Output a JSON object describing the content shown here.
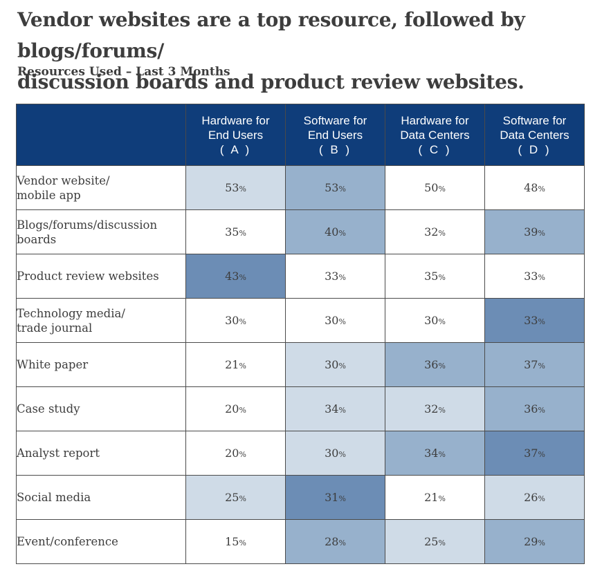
{
  "headline_line1": "Vendor websites are a top resource, followed by blogs/forums/",
  "headline_line2": "discussion boards and product review websites.",
  "subtitle": "Resources Used – Last 3 Months",
  "colors": {
    "header_bg": "#0f3d7a",
    "level_0": "#ffffff",
    "level_1": "#cfdbe7",
    "level_2": "#97b1cc",
    "level_3": "#6c8db5"
  },
  "chart_data": {
    "type": "table",
    "title": "Resources Used – Last 3 Months",
    "columns": [
      {
        "line1": "Hardware for",
        "line2": "End Users",
        "letter": "( A )"
      },
      {
        "line1": "Software for",
        "line2": "End Users",
        "letter": "( B )"
      },
      {
        "line1": "Hardware for",
        "line2": "Data Centers",
        "letter": "( C )"
      },
      {
        "line1": "Software for",
        "line2": "Data Centers",
        "letter": "( D )"
      }
    ],
    "unit": "%",
    "rows": [
      {
        "label_lines": [
          "Vendor website/",
          "mobile app"
        ],
        "values": [
          53,
          53,
          50,
          48
        ],
        "shade": [
          1,
          2,
          0,
          0
        ]
      },
      {
        "label_lines": [
          "Blogs/forums/discussion",
          "boards"
        ],
        "values": [
          35,
          40,
          32,
          39
        ],
        "shade": [
          0,
          2,
          0,
          2
        ]
      },
      {
        "label_lines": [
          "Product review websites"
        ],
        "values": [
          43,
          33,
          35,
          33
        ],
        "shade": [
          3,
          0,
          0,
          0
        ]
      },
      {
        "label_lines": [
          "Technology media/",
          "trade journal"
        ],
        "values": [
          30,
          30,
          30,
          33
        ],
        "shade": [
          0,
          0,
          0,
          3
        ]
      },
      {
        "label_lines": [
          "White paper"
        ],
        "values": [
          21,
          30,
          36,
          37
        ],
        "shade": [
          0,
          1,
          2,
          2
        ]
      },
      {
        "label_lines": [
          "Case study"
        ],
        "values": [
          20,
          34,
          32,
          36
        ],
        "shade": [
          0,
          1,
          1,
          2
        ]
      },
      {
        "label_lines": [
          "Analyst report"
        ],
        "values": [
          20,
          30,
          34,
          37
        ],
        "shade": [
          0,
          1,
          2,
          3
        ]
      },
      {
        "label_lines": [
          "Social media"
        ],
        "values": [
          25,
          31,
          21,
          26
        ],
        "shade": [
          1,
          3,
          0,
          1
        ]
      },
      {
        "label_lines": [
          "Event/conference"
        ],
        "values": [
          15,
          28,
          25,
          29
        ],
        "shade": [
          0,
          2,
          1,
          2
        ]
      }
    ]
  }
}
